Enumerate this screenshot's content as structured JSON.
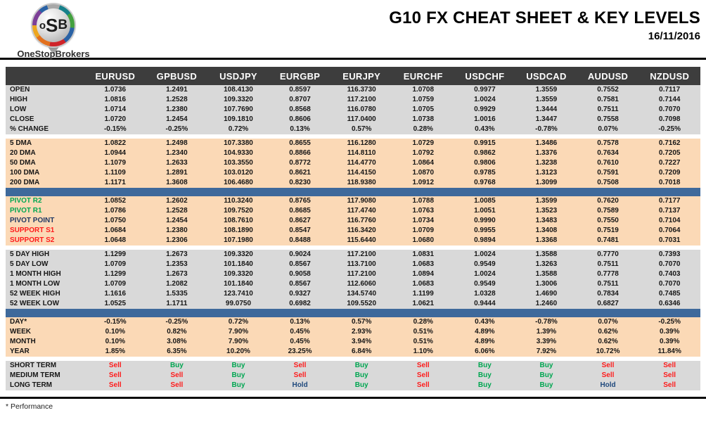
{
  "header": {
    "logo_osb": {
      "o": "o",
      "s": "S",
      "b": "B"
    },
    "logo_brand": "OneStopBrokers",
    "title": "G10 FX CHEAT SHEET & KEY LEVELS",
    "date": "16/11/2016"
  },
  "footer": {
    "note": "* Performance"
  },
  "colors": {
    "header_bg": "#3d3d3d",
    "section_gray": "#d9d9d9",
    "section_peach": "#fbd9b6",
    "blue_bar": "#3e699b",
    "buy": "#00a651",
    "sell": "#fe1b1b",
    "hold": "#1f497d",
    "green": "#00a651",
    "red": "#fe1b1b",
    "navy": "#203864"
  },
  "table": {
    "columns": [
      "EURUSD",
      "GPBUSD",
      "USDJPY",
      "EURGBP",
      "EURJPY",
      "EURCHF",
      "USDCHF",
      "USDCAD",
      "AUDUSD",
      "NZDUSD"
    ],
    "sections": [
      {
        "name": "ohlc",
        "theme": "gray",
        "divider_after": "gap",
        "rows": [
          {
            "label": "OPEN",
            "values": [
              "1.0736",
              "1.2491",
              "108.4130",
              "0.8597",
              "116.3730",
              "1.0708",
              "0.9977",
              "1.3559",
              "0.7552",
              "0.7117"
            ]
          },
          {
            "label": "HIGH",
            "values": [
              "1.0816",
              "1.2528",
              "109.3320",
              "0.8707",
              "117.2100",
              "1.0759",
              "1.0024",
              "1.3559",
              "0.7581",
              "0.7144"
            ]
          },
          {
            "label": "LOW",
            "values": [
              "1.0714",
              "1.2380",
              "107.7690",
              "0.8568",
              "116.0780",
              "1.0705",
              "0.9929",
              "1.3444",
              "0.7511",
              "0.7070"
            ]
          },
          {
            "label": "CLOSE",
            "values": [
              "1.0720",
              "1.2454",
              "109.1810",
              "0.8606",
              "117.0400",
              "1.0738",
              "1.0016",
              "1.3447",
              "0.7558",
              "0.7098"
            ]
          },
          {
            "label": "% CHANGE",
            "values": [
              "-0.15%",
              "-0.25%",
              "0.72%",
              "0.13%",
              "0.57%",
              "0.28%",
              "0.43%",
              "-0.78%",
              "0.07%",
              "-0.25%"
            ]
          }
        ]
      },
      {
        "name": "dma",
        "theme": "peach",
        "divider_after": "blue",
        "rows": [
          {
            "label": "5 DMA",
            "values": [
              "1.0822",
              "1.2498",
              "107.3380",
              "0.8655",
              "116.1280",
              "1.0729",
              "0.9915",
              "1.3486",
              "0.7578",
              "0.7162"
            ]
          },
          {
            "label": "20 DMA",
            "values": [
              "1.0944",
              "1.2340",
              "104.9330",
              "0.8866",
              "114.8110",
              "1.0792",
              "0.9862",
              "1.3376",
              "0.7634",
              "0.7205"
            ]
          },
          {
            "label": "50 DMA",
            "values": [
              "1.1079",
              "1.2633",
              "103.3550",
              "0.8772",
              "114.4770",
              "1.0864",
              "0.9806",
              "1.3238",
              "0.7610",
              "0.7227"
            ]
          },
          {
            "label": "100 DMA",
            "values": [
              "1.1109",
              "1.2891",
              "103.0120",
              "0.8621",
              "114.4150",
              "1.0870",
              "0.9785",
              "1.3123",
              "0.7591",
              "0.7209"
            ]
          },
          {
            "label": "200 DMA",
            "values": [
              "1.1171",
              "1.3608",
              "106.4680",
              "0.8230",
              "118.9380",
              "1.0912",
              "0.9768",
              "1.3099",
              "0.7508",
              "0.7018"
            ]
          }
        ]
      },
      {
        "name": "pivots",
        "theme": "peach",
        "divider_after": "gap",
        "rows": [
          {
            "label": "PIVOT R2",
            "label_color": "green",
            "values": [
              "1.0852",
              "1.2602",
              "110.3240",
              "0.8765",
              "117.9080",
              "1.0788",
              "1.0085",
              "1.3599",
              "0.7620",
              "0.7177"
            ]
          },
          {
            "label": "PIVOT R1",
            "label_color": "green",
            "values": [
              "1.0786",
              "1.2528",
              "109.7520",
              "0.8685",
              "117.4740",
              "1.0763",
              "1.0051",
              "1.3523",
              "0.7589",
              "0.7137"
            ]
          },
          {
            "label": "PIVOT POINT",
            "label_color": "navy",
            "values": [
              "1.0750",
              "1.2454",
              "108.7610",
              "0.8627",
              "116.7760",
              "1.0734",
              "0.9990",
              "1.3483",
              "0.7550",
              "0.7104"
            ]
          },
          {
            "label": "SUPPORT S1",
            "label_color": "red",
            "values": [
              "1.0684",
              "1.2380",
              "108.1890",
              "0.8547",
              "116.3420",
              "1.0709",
              "0.9955",
              "1.3408",
              "0.7519",
              "0.7064"
            ]
          },
          {
            "label": "SUPPORT S2",
            "label_color": "red",
            "values": [
              "1.0648",
              "1.2306",
              "107.1980",
              "0.8488",
              "115.6440",
              "1.0680",
              "0.9894",
              "1.3368",
              "0.7481",
              "0.7031"
            ]
          }
        ]
      },
      {
        "name": "ranges",
        "theme": "gray",
        "divider_after": "blue",
        "rows": [
          {
            "label": "5 DAY HIGH",
            "values": [
              "1.1299",
              "1.2673",
              "109.3320",
              "0.9024",
              "117.2100",
              "1.0831",
              "1.0024",
              "1.3588",
              "0.7770",
              "0.7393"
            ]
          },
          {
            "label": "5 DAY LOW",
            "values": [
              "1.0709",
              "1.2353",
              "101.1840",
              "0.8567",
              "113.7100",
              "1.0683",
              "0.9549",
              "1.3263",
              "0.7511",
              "0.7070"
            ]
          },
          {
            "label": "1 MONTH HIGH",
            "values": [
              "1.1299",
              "1.2673",
              "109.3320",
              "0.9058",
              "117.2100",
              "1.0894",
              "1.0024",
              "1.3588",
              "0.7778",
              "0.7403"
            ]
          },
          {
            "label": "1 MONTH LOW",
            "values": [
              "1.0709",
              "1.2082",
              "101.1840",
              "0.8567",
              "112.6060",
              "1.0683",
              "0.9549",
              "1.3006",
              "0.7511",
              "0.7070"
            ]
          },
          {
            "label": "52 WEEK HIGH",
            "values": [
              "1.1616",
              "1.5335",
              "123.7410",
              "0.9327",
              "134.5740",
              "1.1199",
              "1.0328",
              "1.4690",
              "0.7834",
              "0.7485"
            ]
          },
          {
            "label": "52 WEEK LOW",
            "values": [
              "1.0525",
              "1.1711",
              "99.0750",
              "0.6982",
              "109.5520",
              "1.0621",
              "0.9444",
              "1.2460",
              "0.6827",
              "0.6346"
            ]
          }
        ]
      },
      {
        "name": "performance",
        "theme": "peach",
        "divider_after": "gap",
        "rows": [
          {
            "label": "DAY*",
            "values": [
              "-0.15%",
              "-0.25%",
              "0.72%",
              "0.13%",
              "0.57%",
              "0.28%",
              "0.43%",
              "-0.78%",
              "0.07%",
              "-0.25%"
            ]
          },
          {
            "label": "WEEK",
            "values": [
              "0.10%",
              "0.82%",
              "7.90%",
              "0.45%",
              "2.93%",
              "0.51%",
              "4.89%",
              "1.39%",
              "0.62%",
              "0.39%"
            ]
          },
          {
            "label": "MONTH",
            "values": [
              "0.10%",
              "3.08%",
              "7.90%",
              "0.45%",
              "3.94%",
              "0.51%",
              "4.89%",
              "3.39%",
              "0.62%",
              "0.39%"
            ]
          },
          {
            "label": "YEAR",
            "values": [
              "1.85%",
              "6.35%",
              "10.20%",
              "23.25%",
              "6.84%",
              "1.10%",
              "6.06%",
              "7.92%",
              "10.72%",
              "11.84%"
            ]
          }
        ]
      },
      {
        "name": "signals",
        "theme": "gray",
        "divider_after": "none",
        "rows": [
          {
            "label": "SHORT TERM",
            "values": [
              "Sell",
              "Buy",
              "Buy",
              "Sell",
              "Buy",
              "Sell",
              "Buy",
              "Buy",
              "Sell",
              "Sell"
            ]
          },
          {
            "label": "MEDIUM TERM",
            "values": [
              "Sell",
              "Sell",
              "Buy",
              "Sell",
              "Buy",
              "Sell",
              "Buy",
              "Buy",
              "Sell",
              "Sell"
            ]
          },
          {
            "label": "LONG TERM",
            "values": [
              "Sell",
              "Sell",
              "Buy",
              "Hold",
              "Buy",
              "Sell",
              "Buy",
              "Buy",
              "Hold",
              "Sell"
            ]
          }
        ]
      }
    ]
  }
}
